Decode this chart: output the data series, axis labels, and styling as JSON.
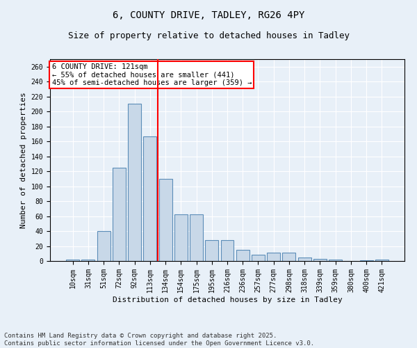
{
  "title1": "6, COUNTY DRIVE, TADLEY, RG26 4PY",
  "title2": "Size of property relative to detached houses in Tadley",
  "xlabel": "Distribution of detached houses by size in Tadley",
  "ylabel": "Number of detached properties",
  "categories": [
    "10sqm",
    "31sqm",
    "51sqm",
    "72sqm",
    "92sqm",
    "113sqm",
    "134sqm",
    "154sqm",
    "175sqm",
    "195sqm",
    "216sqm",
    "236sqm",
    "257sqm",
    "277sqm",
    "298sqm",
    "318sqm",
    "339sqm",
    "359sqm",
    "380sqm",
    "400sqm",
    "421sqm"
  ],
  "values": [
    2,
    2,
    40,
    125,
    210,
    167,
    110,
    62,
    62,
    28,
    28,
    15,
    8,
    11,
    11,
    5,
    3,
    2,
    0,
    1,
    2
  ],
  "bar_color": "#c8d8e8",
  "bar_edge_color": "#5b8db8",
  "vline_index": 5,
  "vline_color": "red",
  "annotation_text": "6 COUNTY DRIVE: 121sqm\n← 55% of detached houses are smaller (441)\n45% of semi-detached houses are larger (359) →",
  "annotation_box_color": "white",
  "annotation_box_edge": "red",
  "footnote": "Contains HM Land Registry data © Crown copyright and database right 2025.\nContains public sector information licensed under the Open Government Licence v3.0.",
  "bg_color": "#e8f0f8",
  "plot_bg_color": "#e8f0f8",
  "ylim": [
    0,
    270
  ],
  "yticks": [
    0,
    20,
    40,
    60,
    80,
    100,
    120,
    140,
    160,
    180,
    200,
    220,
    240,
    260
  ],
  "title_fontsize": 10,
  "subtitle_fontsize": 9,
  "axis_label_fontsize": 8,
  "tick_fontsize": 7,
  "footnote_fontsize": 6.5,
  "annotation_fontsize": 7.5
}
